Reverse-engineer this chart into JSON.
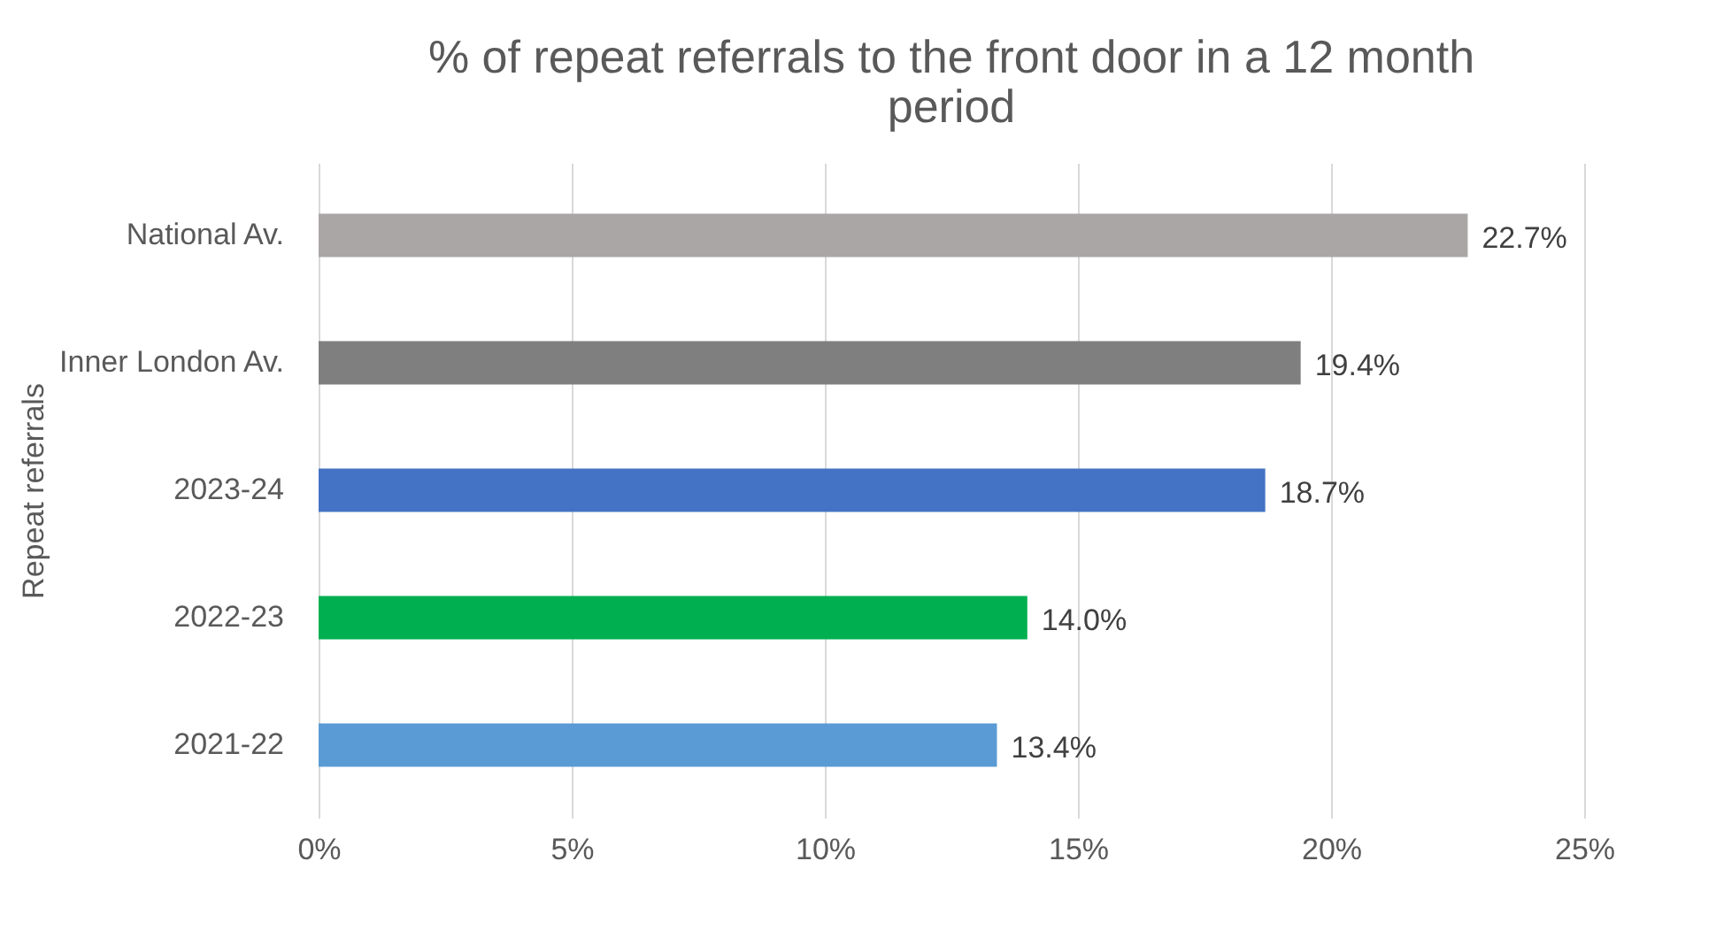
{
  "chart_data": {
    "type": "bar",
    "orientation": "horizontal",
    "title": "% of repeat referrals to the front door in a 12 month period",
    "ylabel": "Repeat referrals",
    "categories": [
      "National Av.",
      "Inner London Av.",
      "2023-24",
      "2022-23",
      "2021-22"
    ],
    "values": [
      22.7,
      19.4,
      18.7,
      14.0,
      13.4
    ],
    "colors": [
      "#aaa6a6",
      "#7f7f7f",
      "#4472c4",
      "#00b050",
      "#5b9bd5"
    ],
    "value_labels": [
      "22.7%",
      "19.4%",
      "18.7%",
      "14.0%",
      "13.4%"
    ],
    "xlim": [
      0,
      25
    ],
    "xticks": [
      {
        "value": 0,
        "label": "0%"
      },
      {
        "value": 5,
        "label": "5%"
      },
      {
        "value": 10,
        "label": "10%"
      },
      {
        "value": 15,
        "label": "15%"
      },
      {
        "value": 20,
        "label": "20%"
      },
      {
        "value": 25,
        "label": "25%"
      }
    ],
    "grid": "x"
  }
}
